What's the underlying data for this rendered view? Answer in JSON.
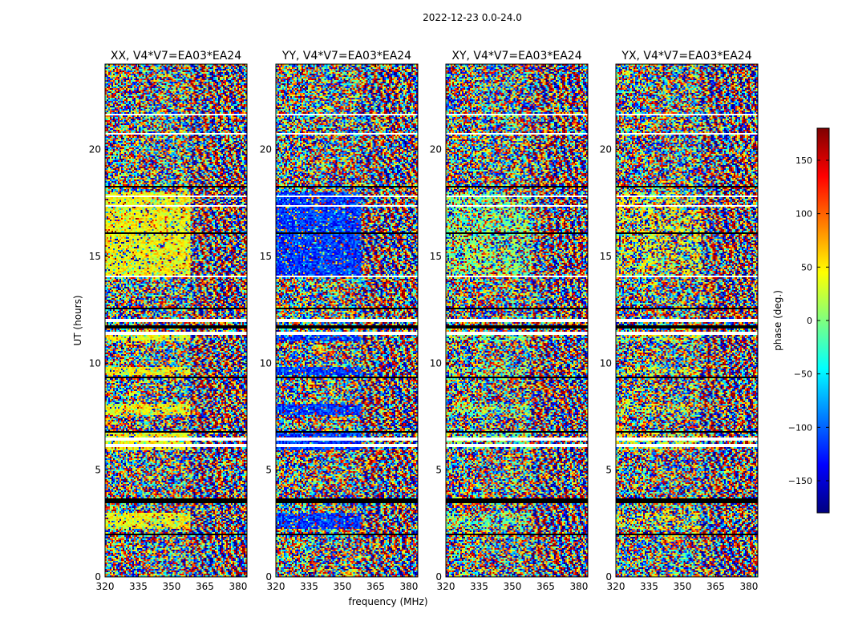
{
  "figure": {
    "suptitle": "2022-12-23 0.0-24.0",
    "shared_xlabel": "frequency (MHz)",
    "shared_ylabel": "UT (hours)"
  },
  "chart_data": [
    {
      "type": "heatmap",
      "title": "XX, V4*V7=EA03*EA24",
      "xlabel": "frequency (MHz)",
      "ylabel": "UT (hours)",
      "xlim": [
        320,
        384
      ],
      "ylim": [
        0,
        24
      ],
      "xticks": [
        320,
        335,
        350,
        365,
        380
      ],
      "yticks": [
        0,
        5,
        10,
        15,
        20
      ],
      "value": "phase (deg.)",
      "colormap": "jet",
      "clim": [
        -180,
        180
      ]
    },
    {
      "type": "heatmap",
      "title": "YY, V4*V7=EA03*EA24",
      "xlabel": "frequency (MHz)",
      "ylabel": "UT (hours)",
      "xlim": [
        320,
        384
      ],
      "ylim": [
        0,
        24
      ],
      "xticks": [
        320,
        335,
        350,
        365,
        380
      ],
      "yticks": [
        0,
        5,
        10,
        15,
        20
      ],
      "value": "phase (deg.)",
      "colormap": "jet",
      "clim": [
        -180,
        180
      ]
    },
    {
      "type": "heatmap",
      "title": "XY, V4*V7=EA03*EA24",
      "xlabel": "frequency (MHz)",
      "ylabel": "UT (hours)",
      "xlim": [
        320,
        384
      ],
      "ylim": [
        0,
        24
      ],
      "xticks": [
        320,
        335,
        350,
        365,
        380
      ],
      "yticks": [
        0,
        5,
        10,
        15,
        20
      ],
      "value": "phase (deg.)",
      "colormap": "jet",
      "clim": [
        -180,
        180
      ]
    },
    {
      "type": "heatmap",
      "title": "YX, V4*V7=EA03*EA24",
      "xlabel": "frequency (MHz)",
      "ylabel": "UT (hours)",
      "xlim": [
        320,
        384
      ],
      "ylim": [
        0,
        24
      ],
      "xticks": [
        320,
        335,
        350,
        365,
        380
      ],
      "yticks": [
        0,
        5,
        10,
        15,
        20
      ],
      "value": "phase (deg.)",
      "colormap": "jet",
      "clim": [
        -180,
        180
      ]
    }
  ],
  "colorbar": {
    "label": "phase (deg.)",
    "ticks": [
      150,
      100,
      50,
      0,
      -50,
      -100,
      -150
    ],
    "colors": [
      "#00007f",
      "#0000ff",
      "#007fff",
      "#00ffff",
      "#7fff7f",
      "#ffff00",
      "#ff7f00",
      "#ff0000",
      "#7f0000"
    ]
  },
  "colors": {
    "flagged": "#ffffff",
    "gap": "#000000"
  }
}
